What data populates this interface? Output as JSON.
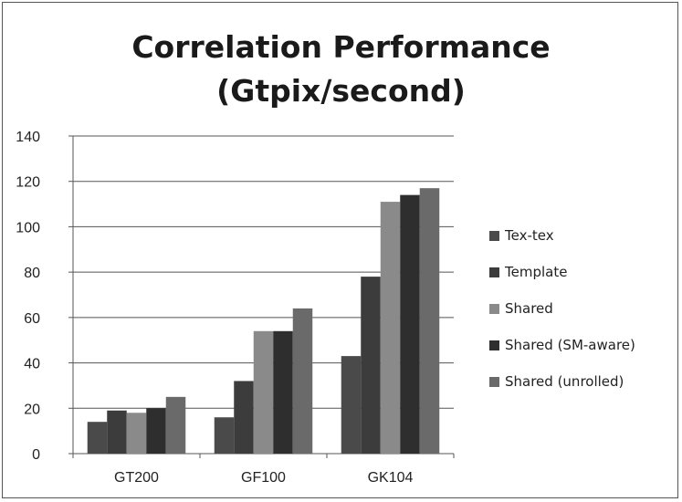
{
  "chart_data": {
    "type": "bar",
    "title_line1": "Correlation Performance",
    "title_line2": "(Gtpix/second)",
    "categories": [
      "GT200",
      "GF100",
      "GK104"
    ],
    "series": [
      {
        "name": "Tex-tex",
        "values": [
          14,
          16,
          43
        ],
        "color": "#4a4a4a"
      },
      {
        "name": "Template",
        "values": [
          19,
          32,
          78
        ],
        "color": "#3c3c3c"
      },
      {
        "name": "Shared",
        "values": [
          18,
          54,
          111
        ],
        "color": "#8a8a8a"
      },
      {
        "name": "Shared (SM-aware)",
        "values": [
          20,
          54,
          114
        ],
        "color": "#2e2e2e"
      },
      {
        "name": "Shared (unrolled)",
        "values": [
          25,
          64,
          117
        ],
        "color": "#6a6a6a"
      }
    ],
    "ylim": [
      0,
      140
    ],
    "yticks": [
      "0",
      "20",
      "40",
      "60",
      "80",
      "100",
      "120",
      "140"
    ],
    "grid": true,
    "legend_position": "right"
  }
}
